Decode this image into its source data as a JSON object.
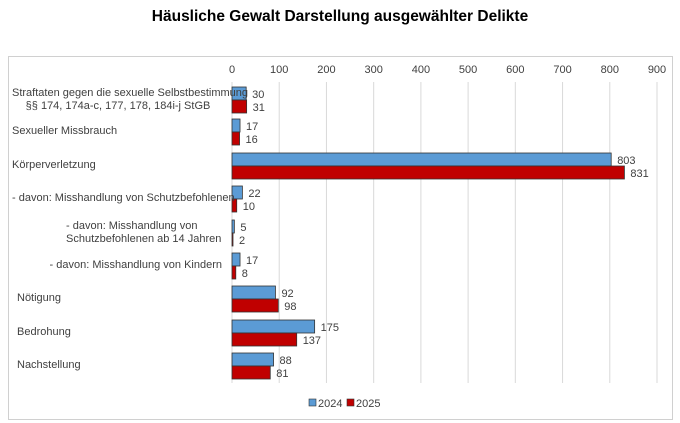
{
  "chart_data": {
    "type": "bar",
    "orientation": "horizontal",
    "title": "Häusliche Gewalt Darstellung ausgewählter Delikte",
    "categories": [
      [
        "Straftaten gegen die sexuelle Selbstbestimmung",
        "§§ 174, 174a-c, 177, 178, 184i-j StGB"
      ],
      [
        "Sexueller Missbrauch"
      ],
      [
        "Körperverletzung"
      ],
      [
        "- davon: Misshandlung von Schutzbefohlenen"
      ],
      [
        "- davon: Misshandlung von",
        "Schutzbefohlenen ab 14 Jahren"
      ],
      [
        "- davon: Misshandlung von Kindern"
      ],
      [
        "Nötigung"
      ],
      [
        "Bedrohung"
      ],
      [
        "Nachstellung"
      ]
    ],
    "series": [
      {
        "name": "2024",
        "color": "#5b9bd5",
        "values": [
          30,
          17,
          803,
          22,
          5,
          17,
          92,
          175,
          88
        ]
      },
      {
        "name": "2025",
        "color": "#c00000",
        "values": [
          31,
          16,
          831,
          10,
          2,
          8,
          98,
          137,
          81
        ]
      }
    ],
    "xlim": [
      0,
      900
    ],
    "xticks": [
      0,
      100,
      200,
      300,
      400,
      500,
      600,
      700,
      800,
      900
    ],
    "xaxis_position": "top",
    "grid": true,
    "legend": "bottom",
    "data_labels": true
  }
}
